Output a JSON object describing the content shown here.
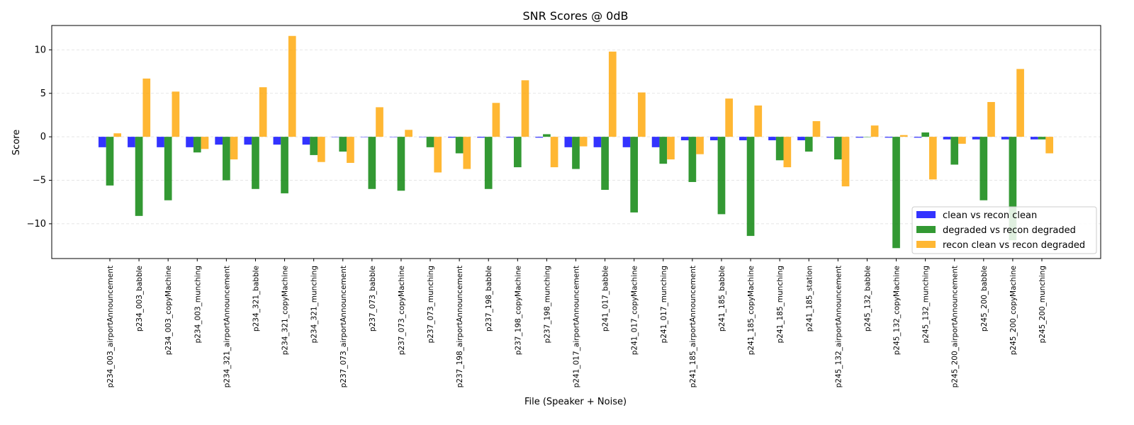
{
  "chart_data": {
    "type": "bar",
    "title": "SNR Scores @ 0dB",
    "xlabel": "File (Speaker + Noise)",
    "ylabel": "Score",
    "ylim": [
      -14,
      12.8
    ],
    "yticks": [
      -10,
      -5,
      0,
      5,
      10
    ],
    "grid": "y-dashed",
    "legend_position": "bottom-right",
    "categories": [
      "p234_003_airportAnnouncement",
      "p234_003_babble",
      "p234_003_copyMachine",
      "p234_003_munching",
      "p234_321_airportAnnouncement",
      "p234_321_babble",
      "p234_321_copyMachine",
      "p234_321_munching",
      "p237_073_airportAnnouncement",
      "p237_073_babble",
      "p237_073_copyMachine",
      "p237_073_munching",
      "p237_198_airportAnnouncement",
      "p237_198_babble",
      "p237_198_copyMachine",
      "p237_198_munching",
      "p241_017_airportAnnouncement",
      "p241_017_babble",
      "p241_017_copyMachine",
      "p241_017_munching",
      "p241_185_airportAnnouncement",
      "p241_185_babble",
      "p241_185_copyMachine",
      "p241_185_munching",
      "p241_185_station",
      "p245_132_airportAnnouncement",
      "p245_132_babble",
      "p245_132_copyMachine",
      "p245_132_munching",
      "p245_200_airportAnnouncement",
      "p245_200_babble",
      "p245_200_copyMachine",
      "p245_200_munching"
    ],
    "series": [
      {
        "name": "clean vs recon clean",
        "color": "#0000ff",
        "values": [
          -1.2,
          -1.2,
          -1.2,
          -1.2,
          -0.9,
          -0.9,
          -0.9,
          -0.9,
          0,
          0,
          0,
          0,
          -0.1,
          -0.1,
          -0.1,
          -0.1,
          -1.2,
          -1.2,
          -1.2,
          -1.2,
          -0.4,
          -0.4,
          -0.4,
          -0.4,
          -0.4,
          -0.1,
          -0.1,
          -0.1,
          -0.1,
          -0.3,
          -0.3,
          -0.3,
          -0.3
        ]
      },
      {
        "name": "degraded vs recon degraded",
        "color": "#008000",
        "values": [
          -5.6,
          -9.1,
          -7.3,
          -1.8,
          -5.0,
          -6.0,
          -6.5,
          -2.1,
          -1.7,
          -6.0,
          -6.2,
          -1.2,
          -1.9,
          -6.0,
          -3.5,
          0.3,
          -3.7,
          -6.1,
          -8.7,
          -3.1,
          -5.2,
          -8.9,
          -11.4,
          -2.7,
          -1.7,
          -2.6,
          0,
          -12.8,
          0.5,
          -3.2,
          -7.3,
          -11.9,
          -0.3
        ]
      },
      {
        "name": "recon clean vs recon degraded",
        "color": "#ffa500",
        "values": [
          0.4,
          6.7,
          5.2,
          -1.4,
          -2.6,
          5.7,
          11.6,
          -2.9,
          -3.0,
          3.4,
          0.8,
          -4.1,
          -3.7,
          3.9,
          6.5,
          -3.5,
          -1.1,
          9.8,
          5.1,
          -2.6,
          -2.0,
          4.4,
          3.6,
          -3.5,
          1.8,
          -5.7,
          1.3,
          0.2,
          -4.9,
          -0.8,
          4.0,
          7.8,
          -1.9
        ]
      }
    ]
  }
}
